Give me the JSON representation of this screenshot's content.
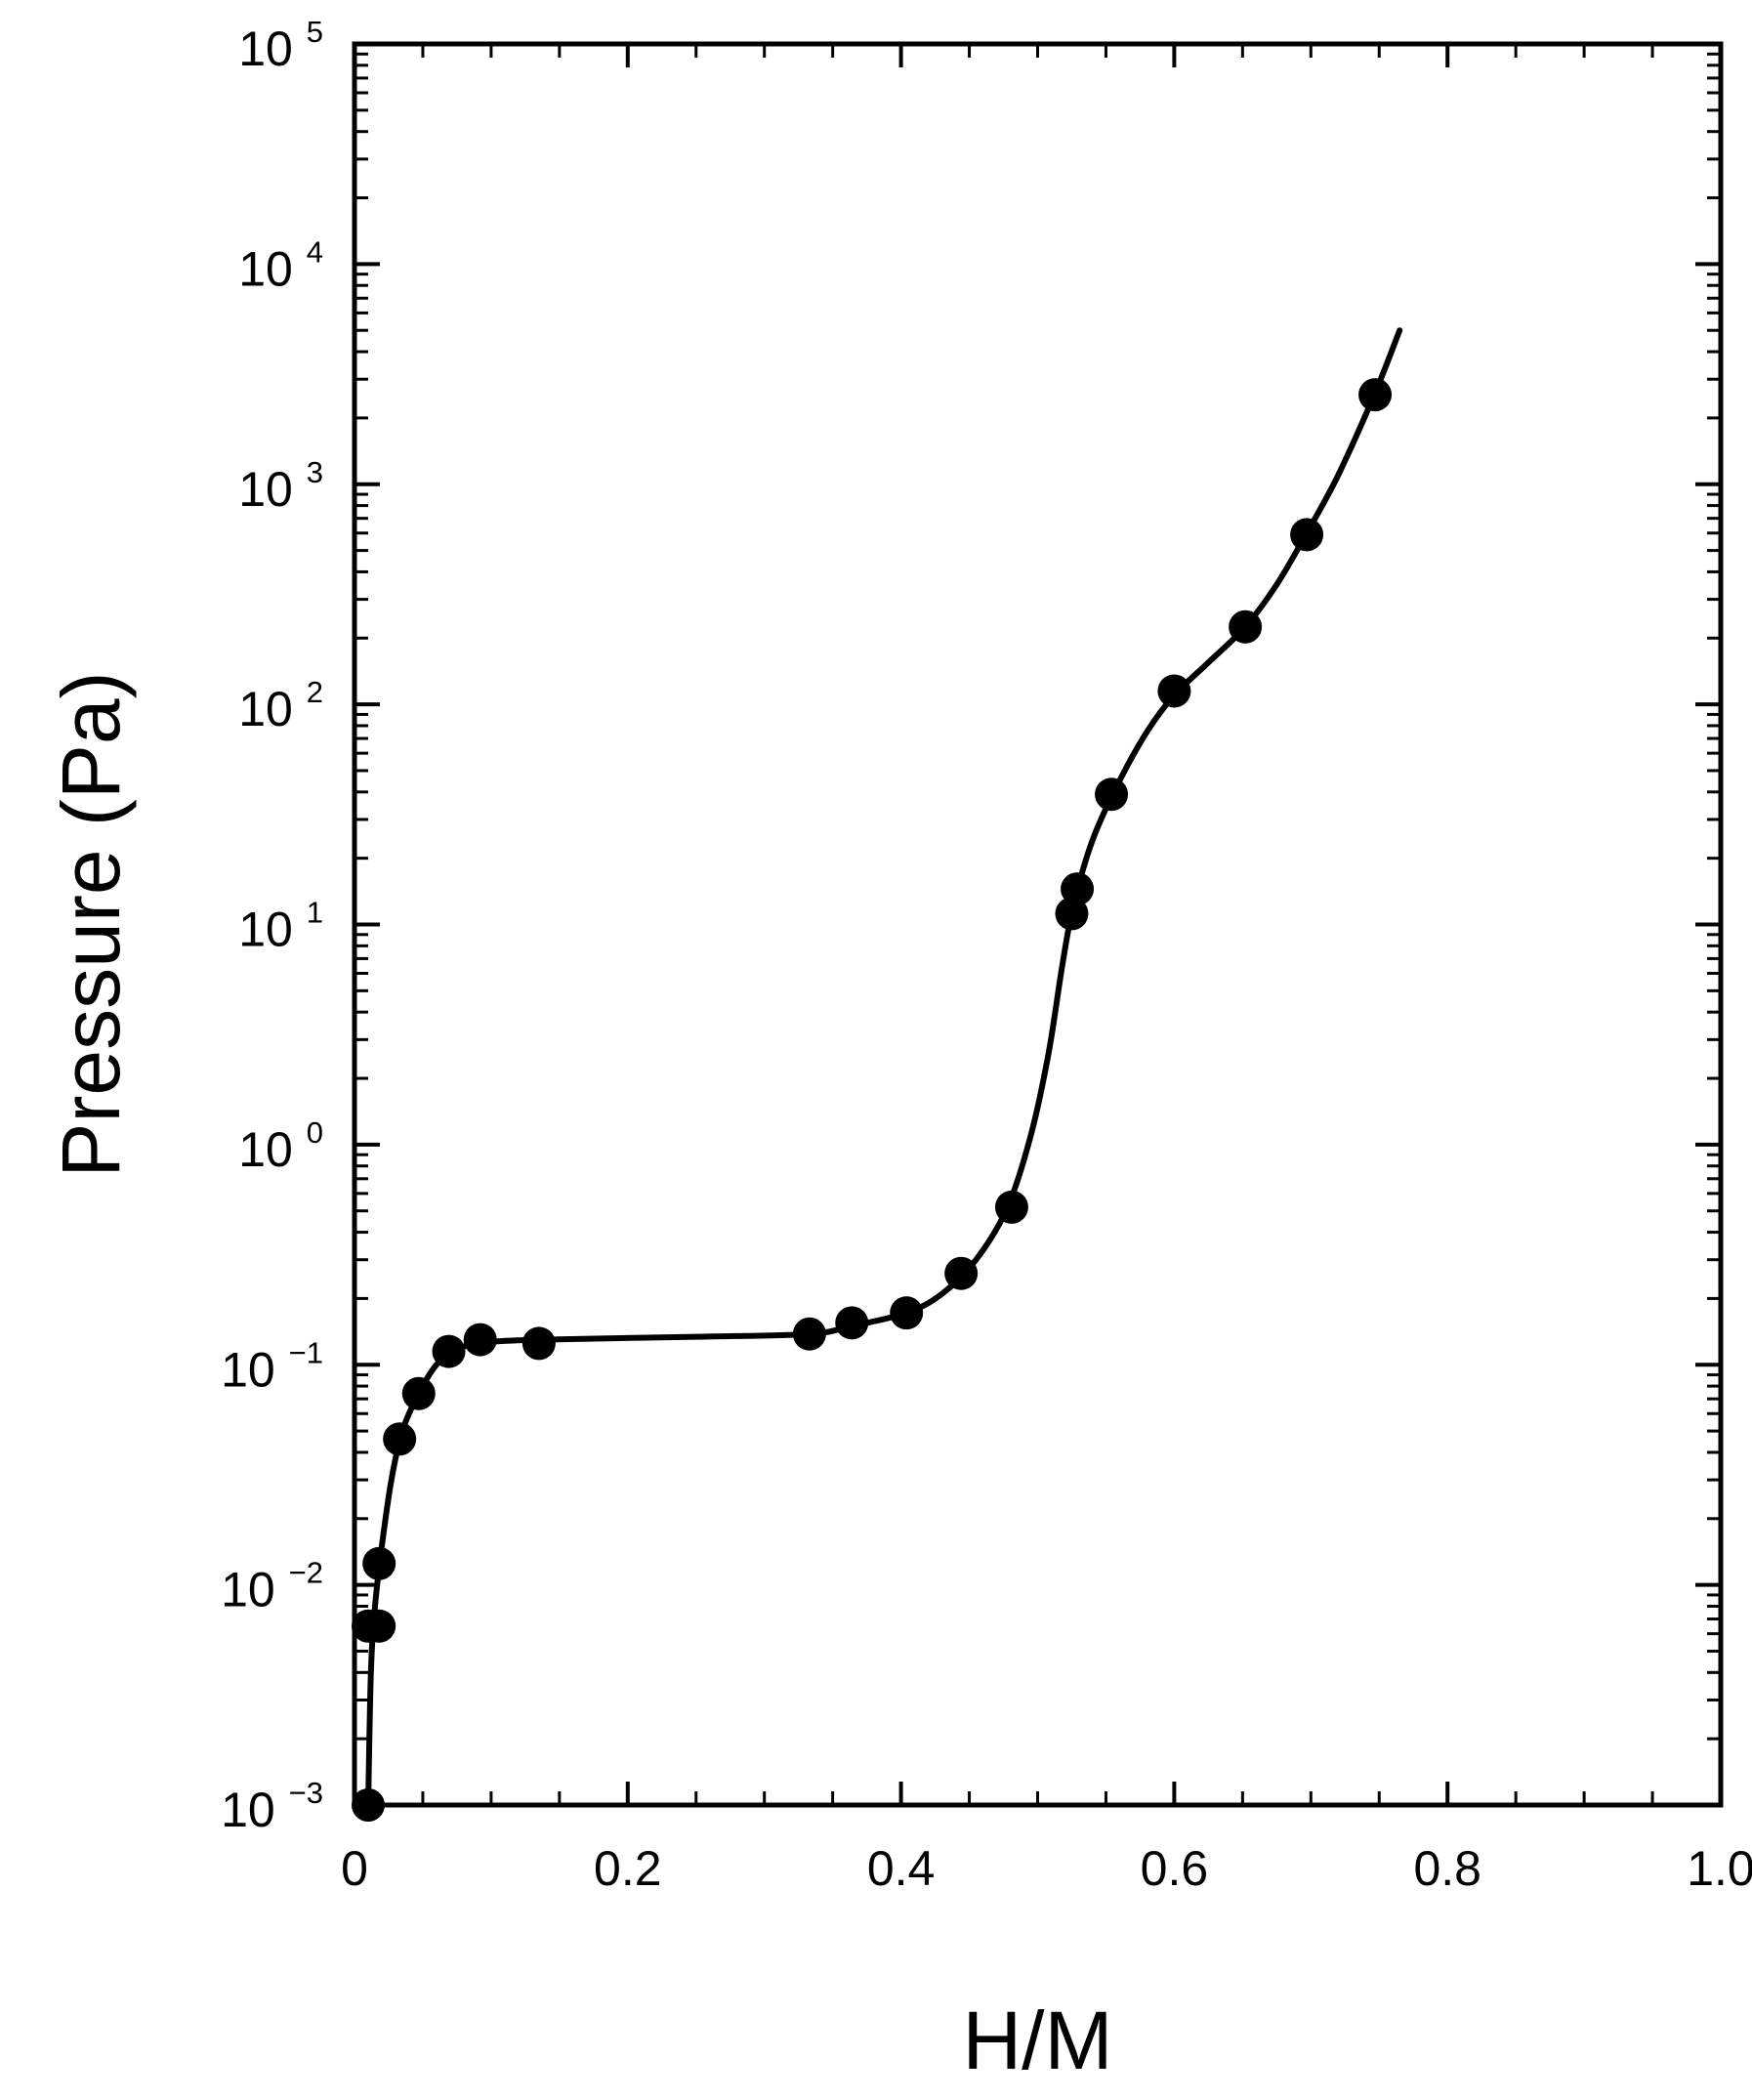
{
  "chart_data": {
    "type": "scatter",
    "title": "",
    "xlabel": "H/M",
    "ylabel": "Pressure (Pa)",
    "xlim": [
      0,
      1.0
    ],
    "ylim": [
      0.001,
      100000
    ],
    "yscale": "log",
    "grid": false,
    "legend": "none",
    "x_ticks": [
      {
        "value": 0,
        "label": "0"
      },
      {
        "value": 0.2,
        "label": "0.2"
      },
      {
        "value": 0.4,
        "label": "0.4"
      },
      {
        "value": 0.6,
        "label": "0.6"
      },
      {
        "value": 0.8,
        "label": "0.8"
      },
      {
        "value": 1.0,
        "label": "1.0"
      }
    ],
    "y_ticks": [
      {
        "value": 0.001,
        "base": "10",
        "exp": "−3"
      },
      {
        "value": 0.01,
        "base": "10",
        "exp": "−2"
      },
      {
        "value": 0.1,
        "base": "10",
        "exp": "−1"
      },
      {
        "value": 1,
        "base": "10",
        "exp": "0"
      },
      {
        "value": 10,
        "base": "10",
        "exp": "1"
      },
      {
        "value": 100,
        "base": "10",
        "exp": "2"
      },
      {
        "value": 1000,
        "base": "10",
        "exp": "3"
      },
      {
        "value": 10000,
        "base": "10",
        "exp": "4"
      },
      {
        "value": 100000,
        "base": "10",
        "exp": "5"
      }
    ],
    "series": [
      {
        "marker": "filled-circle",
        "color": "#000000",
        "points": [
          {
            "x": 0.01,
            "y": 0.001
          },
          {
            "x": 0.01,
            "y": 0.0065
          },
          {
            "x": 0.018,
            "y": 0.0065
          },
          {
            "x": 0.018,
            "y": 0.0125
          },
          {
            "x": 0.033,
            "y": 0.046
          },
          {
            "x": 0.047,
            "y": 0.074
          },
          {
            "x": 0.069,
            "y": 0.115
          },
          {
            "x": 0.092,
            "y": 0.13
          },
          {
            "x": 0.135,
            "y": 0.125
          },
          {
            "x": 0.333,
            "y": 0.138
          },
          {
            "x": 0.364,
            "y": 0.155
          },
          {
            "x": 0.404,
            "y": 0.172
          },
          {
            "x": 0.444,
            "y": 0.26
          },
          {
            "x": 0.481,
            "y": 0.52
          },
          {
            "x": 0.525,
            "y": 11.2
          },
          {
            "x": 0.529,
            "y": 14.5
          },
          {
            "x": 0.554,
            "y": 39
          },
          {
            "x": 0.6,
            "y": 115
          },
          {
            "x": 0.652,
            "y": 225
          },
          {
            "x": 0.697,
            "y": 590
          },
          {
            "x": 0.747,
            "y": 2550
          }
        ]
      },
      {
        "type": "line",
        "color": "#000000",
        "points": [
          {
            "x": 0.01,
            "y": 0.001
          },
          {
            "x": 0.012,
            "y": 0.004
          },
          {
            "x": 0.015,
            "y": 0.008
          },
          {
            "x": 0.02,
            "y": 0.015
          },
          {
            "x": 0.027,
            "y": 0.03
          },
          {
            "x": 0.035,
            "y": 0.05
          },
          {
            "x": 0.047,
            "y": 0.074
          },
          {
            "x": 0.06,
            "y": 0.1
          },
          {
            "x": 0.075,
            "y": 0.118
          },
          {
            "x": 0.095,
            "y": 0.126
          },
          {
            "x": 0.135,
            "y": 0.13
          },
          {
            "x": 0.25,
            "y": 0.134
          },
          {
            "x": 0.333,
            "y": 0.138
          },
          {
            "x": 0.364,
            "y": 0.15
          },
          {
            "x": 0.404,
            "y": 0.172
          },
          {
            "x": 0.43,
            "y": 0.21
          },
          {
            "x": 0.455,
            "y": 0.3
          },
          {
            "x": 0.478,
            "y": 0.52
          },
          {
            "x": 0.495,
            "y": 1.1
          },
          {
            "x": 0.508,
            "y": 2.6
          },
          {
            "x": 0.518,
            "y": 6.5
          },
          {
            "x": 0.526,
            "y": 12
          },
          {
            "x": 0.54,
            "y": 24
          },
          {
            "x": 0.56,
            "y": 45
          },
          {
            "x": 0.58,
            "y": 75
          },
          {
            "x": 0.6,
            "y": 110
          },
          {
            "x": 0.625,
            "y": 155
          },
          {
            "x": 0.652,
            "y": 225
          },
          {
            "x": 0.675,
            "y": 350
          },
          {
            "x": 0.697,
            "y": 600
          },
          {
            "x": 0.72,
            "y": 1100
          },
          {
            "x": 0.747,
            "y": 2600
          },
          {
            "x": 0.765,
            "y": 5000
          }
        ]
      }
    ]
  }
}
